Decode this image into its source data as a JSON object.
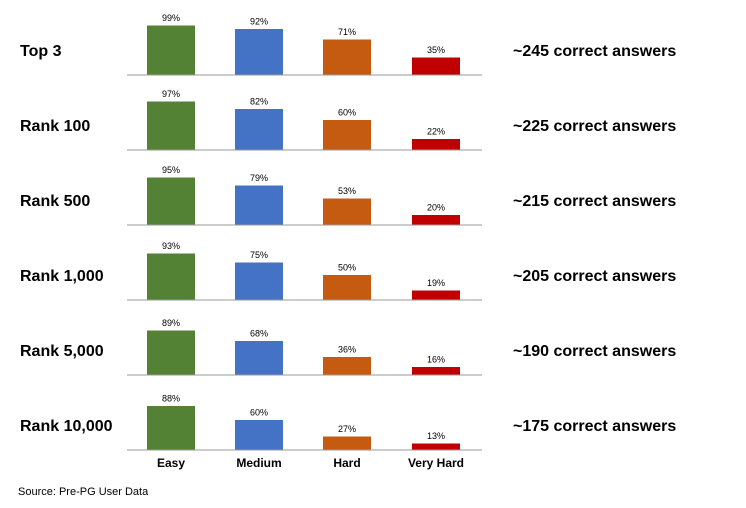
{
  "chart_data": [
    {
      "type": "bar",
      "title": "Top 3",
      "values": [
        99,
        92,
        71,
        35
      ],
      "value_labels": [
        "99%",
        "92%",
        "71%",
        "35%"
      ],
      "colors": [
        "#548235",
        "#4472c4",
        "#c55a11",
        "#c00000"
      ],
      "annotation": "~245 correct answers"
    },
    {
      "type": "bar",
      "title": "Rank 100",
      "values": [
        97,
        82,
        60,
        22
      ],
      "value_labels": [
        "97%",
        "82%",
        "60%",
        "22%"
      ],
      "colors": [
        "#548235",
        "#4472c4",
        "#c55a11",
        "#c00000"
      ],
      "annotation": "~225 correct answers"
    },
    {
      "type": "bar",
      "title": "Rank 500",
      "values": [
        95,
        79,
        53,
        20
      ],
      "value_labels": [
        "95%",
        "79%",
        "53%",
        "20%"
      ],
      "colors": [
        "#548235",
        "#4472c4",
        "#c55a11",
        "#c00000"
      ],
      "annotation": "~215 correct answers"
    },
    {
      "type": "bar",
      "title": "Rank 1,000",
      "values": [
        93,
        75,
        50,
        19
      ],
      "value_labels": [
        "93%",
        "75%",
        "50%",
        "19%"
      ],
      "colors": [
        "#548235",
        "#4472c4",
        "#c55a11",
        "#c00000"
      ],
      "annotation": "~205 correct answers"
    },
    {
      "type": "bar",
      "title": "Rank 5,000",
      "values": [
        89,
        68,
        36,
        16
      ],
      "value_labels": [
        "89%",
        "68%",
        "36%",
        "16%"
      ],
      "colors": [
        "#548235",
        "#4472c4",
        "#c55a11",
        "#c00000"
      ],
      "annotation": "~190 correct answers"
    },
    {
      "type": "bar",
      "title": "Rank 10,000",
      "categories": [
        "Easy",
        "Medium",
        "Hard",
        "Very Hard"
      ],
      "values": [
        88,
        60,
        27,
        13
      ],
      "value_labels": [
        "88%",
        "60%",
        "27%",
        "13%"
      ],
      "colors": [
        "#548235",
        "#4472c4",
        "#c55a11",
        "#c00000"
      ],
      "annotation": "~175 correct answers"
    }
  ],
  "source": "Source: Pre-PG User Data"
}
